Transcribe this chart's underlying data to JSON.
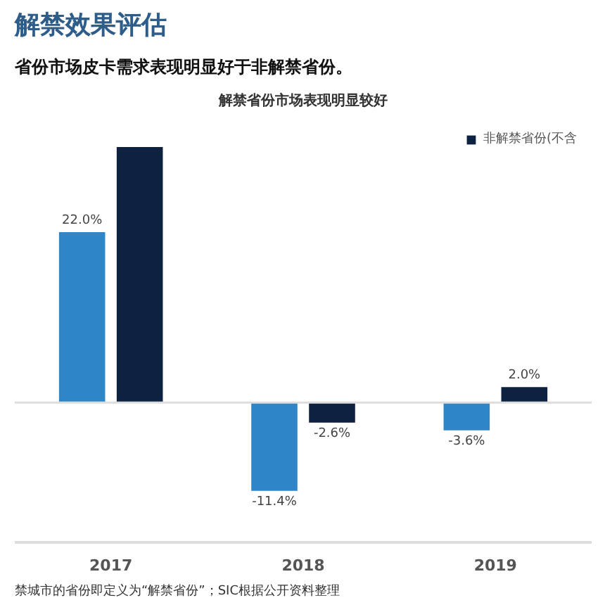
{
  "chart_data": {
    "type": "bar",
    "title": "解禁效果评估",
    "subtitle": "省份市场皮卡需求表现明显好于非解禁省份。",
    "xlabel": "解禁省份市场表现明显较好",
    "categories": [
      "2017",
      "2018",
      "2019"
    ],
    "series": [
      {
        "color": "#2e86c8",
        "values": [
          22.0,
          -11.4,
          -3.6
        ],
        "value_labels": [
          "22.0%",
          "-11.4%",
          "-3.6%"
        ]
      },
      {
        "name": "非解禁省份(不含",
        "color": "#0d2240",
        "values": [
          33,
          -2.6,
          2.0
        ],
        "value_labels": [
          null,
          "-2.6%",
          "2.0%"
        ]
      }
    ],
    "legend": "top right",
    "grid": false,
    "annotations": [
      "禁城市的省份即定义为“解禁省份”；SIC根据公开资料整理"
    ]
  }
}
